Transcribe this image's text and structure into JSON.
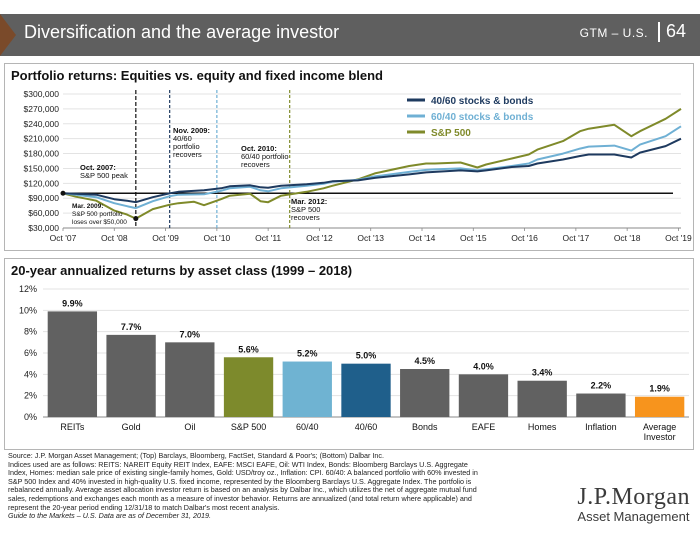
{
  "header": {
    "title": "Diversification and the average investor",
    "slide_id": "GTM – U.S.",
    "page_number": "64"
  },
  "colors": {
    "header_bg": "#5f5f5f",
    "stocks_bonds_40_60": "#1e3a5f",
    "stocks_bonds_60_40": "#6fb0d4",
    "sp500": "#7f8a2a",
    "bar_gray": "#616161",
    "bar_sp500": "#7d8a2c",
    "bar_60_40": "#6fb3d2",
    "bar_40_60": "#1f5f8b",
    "bar_average_investor": "#f7941d"
  },
  "chart_data": [
    {
      "type": "line",
      "title": "Portfolio returns: Equities vs. equity and fixed income blend",
      "x_ticks": [
        "Oct '07",
        "Oct '08",
        "Oct '09",
        "Oct '10",
        "Oct '11",
        "Oct '12",
        "Oct '13",
        "Oct '14",
        "Oct '15",
        "Oct '16",
        "Oct '17",
        "Oct '18",
        "Oct '19"
      ],
      "y_ticks": [
        "$30,000",
        "$60,000",
        "$90,000",
        "$120,000",
        "$150,000",
        "$180,000",
        "$210,000",
        "$240,000",
        "$270,000",
        "$300,000"
      ],
      "ylim": [
        30000,
        300000
      ],
      "xlim": [
        2007.75,
        2019.8
      ],
      "legend_position": "top-right",
      "baseline": 100000,
      "series": [
        {
          "name": "40/60 stocks & bonds",
          "color": "#1e3a5f",
          "x": [
            2007.75,
            2008.0,
            2008.4,
            2008.75,
            2009.0,
            2009.17,
            2009.5,
            2009.83,
            2010.0,
            2010.5,
            2010.83,
            2011.0,
            2011.4,
            2011.6,
            2011.75,
            2012.0,
            2012.5,
            2012.83,
            2013.0,
            2013.5,
            2013.83,
            2014.5,
            2014.83,
            2015.0,
            2015.5,
            2015.83,
            2016.0,
            2016.5,
            2016.83,
            2017.0,
            2017.5,
            2017.83,
            2018.0,
            2018.5,
            2018.83,
            2019.0,
            2019.5,
            2019.8
          ],
          "y": [
            100000,
            99000,
            97000,
            88000,
            85000,
            82000,
            92000,
            100000,
            103000,
            106000,
            110000,
            114000,
            116000,
            112000,
            111000,
            115000,
            118000,
            121000,
            124000,
            126000,
            131000,
            138000,
            142000,
            143000,
            146000,
            144000,
            146000,
            153000,
            155000,
            160000,
            168000,
            175000,
            178000,
            178000,
            172000,
            182000,
            195000,
            210000
          ]
        },
        {
          "name": "60/40 stocks & bonds",
          "color": "#6fb0d4",
          "x": [
            2007.75,
            2008.0,
            2008.4,
            2008.75,
            2009.0,
            2009.17,
            2009.5,
            2009.83,
            2010.0,
            2010.5,
            2010.83,
            2011.0,
            2011.4,
            2011.6,
            2011.75,
            2012.0,
            2012.5,
            2012.83,
            2013.0,
            2013.5,
            2013.83,
            2014.5,
            2014.83,
            2015.0,
            2015.5,
            2015.83,
            2016.0,
            2016.5,
            2016.83,
            2017.0,
            2017.5,
            2017.83,
            2018.0,
            2018.5,
            2018.83,
            2019.0,
            2019.5,
            2019.8
          ],
          "y": [
            100000,
            97000,
            92000,
            80000,
            74000,
            70000,
            84000,
            94000,
            97000,
            98000,
            105000,
            110000,
            113000,
            106000,
            104000,
            110000,
            115000,
            119000,
            123000,
            127000,
            134000,
            143000,
            147000,
            148000,
            150000,
            146000,
            148000,
            155000,
            160000,
            168000,
            180000,
            190000,
            194000,
            196000,
            186000,
            198000,
            215000,
            235000
          ]
        },
        {
          "name": "S&P 500",
          "color": "#7f8a2a",
          "x": [
            2007.75,
            2008.0,
            2008.4,
            2008.75,
            2009.0,
            2009.17,
            2009.5,
            2009.83,
            2010.0,
            2010.3,
            2010.5,
            2010.83,
            2011.0,
            2011.4,
            2011.6,
            2011.75,
            2012.0,
            2012.5,
            2012.83,
            2013.0,
            2013.5,
            2013.83,
            2014.5,
            2014.83,
            2015.0,
            2015.5,
            2015.83,
            2016.0,
            2016.5,
            2016.83,
            2017.0,
            2017.5,
            2017.83,
            2018.0,
            2018.5,
            2018.83,
            2019.0,
            2019.5,
            2019.8
          ],
          "y": [
            100000,
            93000,
            85000,
            65000,
            57000,
            49000,
            68000,
            77000,
            80000,
            83000,
            76000,
            88000,
            95000,
            99000,
            84000,
            82000,
            95000,
            103000,
            110000,
            115000,
            128000,
            140000,
            155000,
            160000,
            160000,
            162000,
            152000,
            158000,
            170000,
            178000,
            188000,
            205000,
            225000,
            230000,
            238000,
            215000,
            225000,
            250000,
            270000
          ]
        }
      ],
      "annotations": [
        {
          "text": [
            "Oct. 2007:",
            "S&P 500 peak"
          ]
        },
        {
          "text": [
            "Mar. 2009:",
            "S&P 500 portfolio",
            "loses over $50,000"
          ]
        },
        {
          "text": [
            "Nov. 2009:",
            "40/60",
            "portfolio",
            "recovers"
          ]
        },
        {
          "text": [
            "Oct. 2010:",
            "60/40 portfolio",
            "recovers"
          ]
        },
        {
          "text": [
            "Mar. 2012:",
            "S&P 500",
            "recovers"
          ]
        }
      ],
      "vlines": [
        {
          "x": 2009.17
        },
        {
          "x": 2009.83
        },
        {
          "x": 2010.75
        },
        {
          "x": 2012.17
        }
      ]
    },
    {
      "type": "bar",
      "title": "20-year annualized returns by asset class (1999 – 2018)",
      "categories": [
        "REITs",
        "Gold",
        "Oil",
        "S&P 500",
        "60/40",
        "40/60",
        "Bonds",
        "EAFE",
        "Homes",
        "Inflation",
        "Average Investor"
      ],
      "category_lines": [
        [
          "REITs"
        ],
        [
          "Gold"
        ],
        [
          "Oil"
        ],
        [
          "S&P 500"
        ],
        [
          "60/40"
        ],
        [
          "40/60"
        ],
        [
          "Bonds"
        ],
        [
          "EAFE"
        ],
        [
          "Homes"
        ],
        [
          "Inflation"
        ],
        [
          "Average",
          "Investor"
        ]
      ],
      "values": [
        9.9,
        7.7,
        7.0,
        5.6,
        5.2,
        5.0,
        4.5,
        4.0,
        3.4,
        2.2,
        1.9
      ],
      "value_labels": [
        "9.9%",
        "7.7%",
        "7.0%",
        "5.6%",
        "5.2%",
        "5.0%",
        "4.5%",
        "4.0%",
        "3.4%",
        "2.2%",
        "1.9%"
      ],
      "colors": [
        "#616161",
        "#616161",
        "#616161",
        "#7d8a2c",
        "#6fb3d2",
        "#1f5f8b",
        "#616161",
        "#616161",
        "#616161",
        "#616161",
        "#f7941d"
      ],
      "y_ticks": [
        "0%",
        "2%",
        "4%",
        "6%",
        "8%",
        "10%",
        "12%"
      ],
      "ylim": [
        0,
        12
      ]
    }
  ],
  "footnotes": {
    "source_line": "Source: J.P. Morgan Asset Management; (Top) Barclays, Bloomberg, FactSet, Standard & Poor's; (Bottom) Dalbar Inc.",
    "lines": [
      "Indices used are as follows: REITS: NAREIT Equity REIT Index, EAFE: MSCI EAFE, Oil: WTI Index, Bonds: Bloomberg Barclays U.S. Aggregate",
      "Index, Homes: median sale price of existing single-family homes, Gold: USD/troy oz., Inflation: CPI. 60/40: A balanced portfolio with 60% invested in",
      "S&P 500 Index and 40% invested in high-quality U.S. fixed income, represented by the Bloomberg Barclays U.S. Aggregate Index. The portfolio is",
      "rebalanced annually. Average asset allocation investor return is based on an analysis by Dalbar Inc., which utilizes the net of aggregate mutual fund",
      "sales, redemptions and exchanges each month as a measure of investor behavior. Returns are annualized (and total return where applicable) and",
      "represent the 20-year period ending 12/31/18 to match Dalbar's most recent analysis."
    ],
    "guide_line": "Guide to the Markets – U.S. Data are as of December 31, 2019."
  },
  "logo": {
    "name": "J.P.Morgan",
    "sub": "Asset Management"
  }
}
